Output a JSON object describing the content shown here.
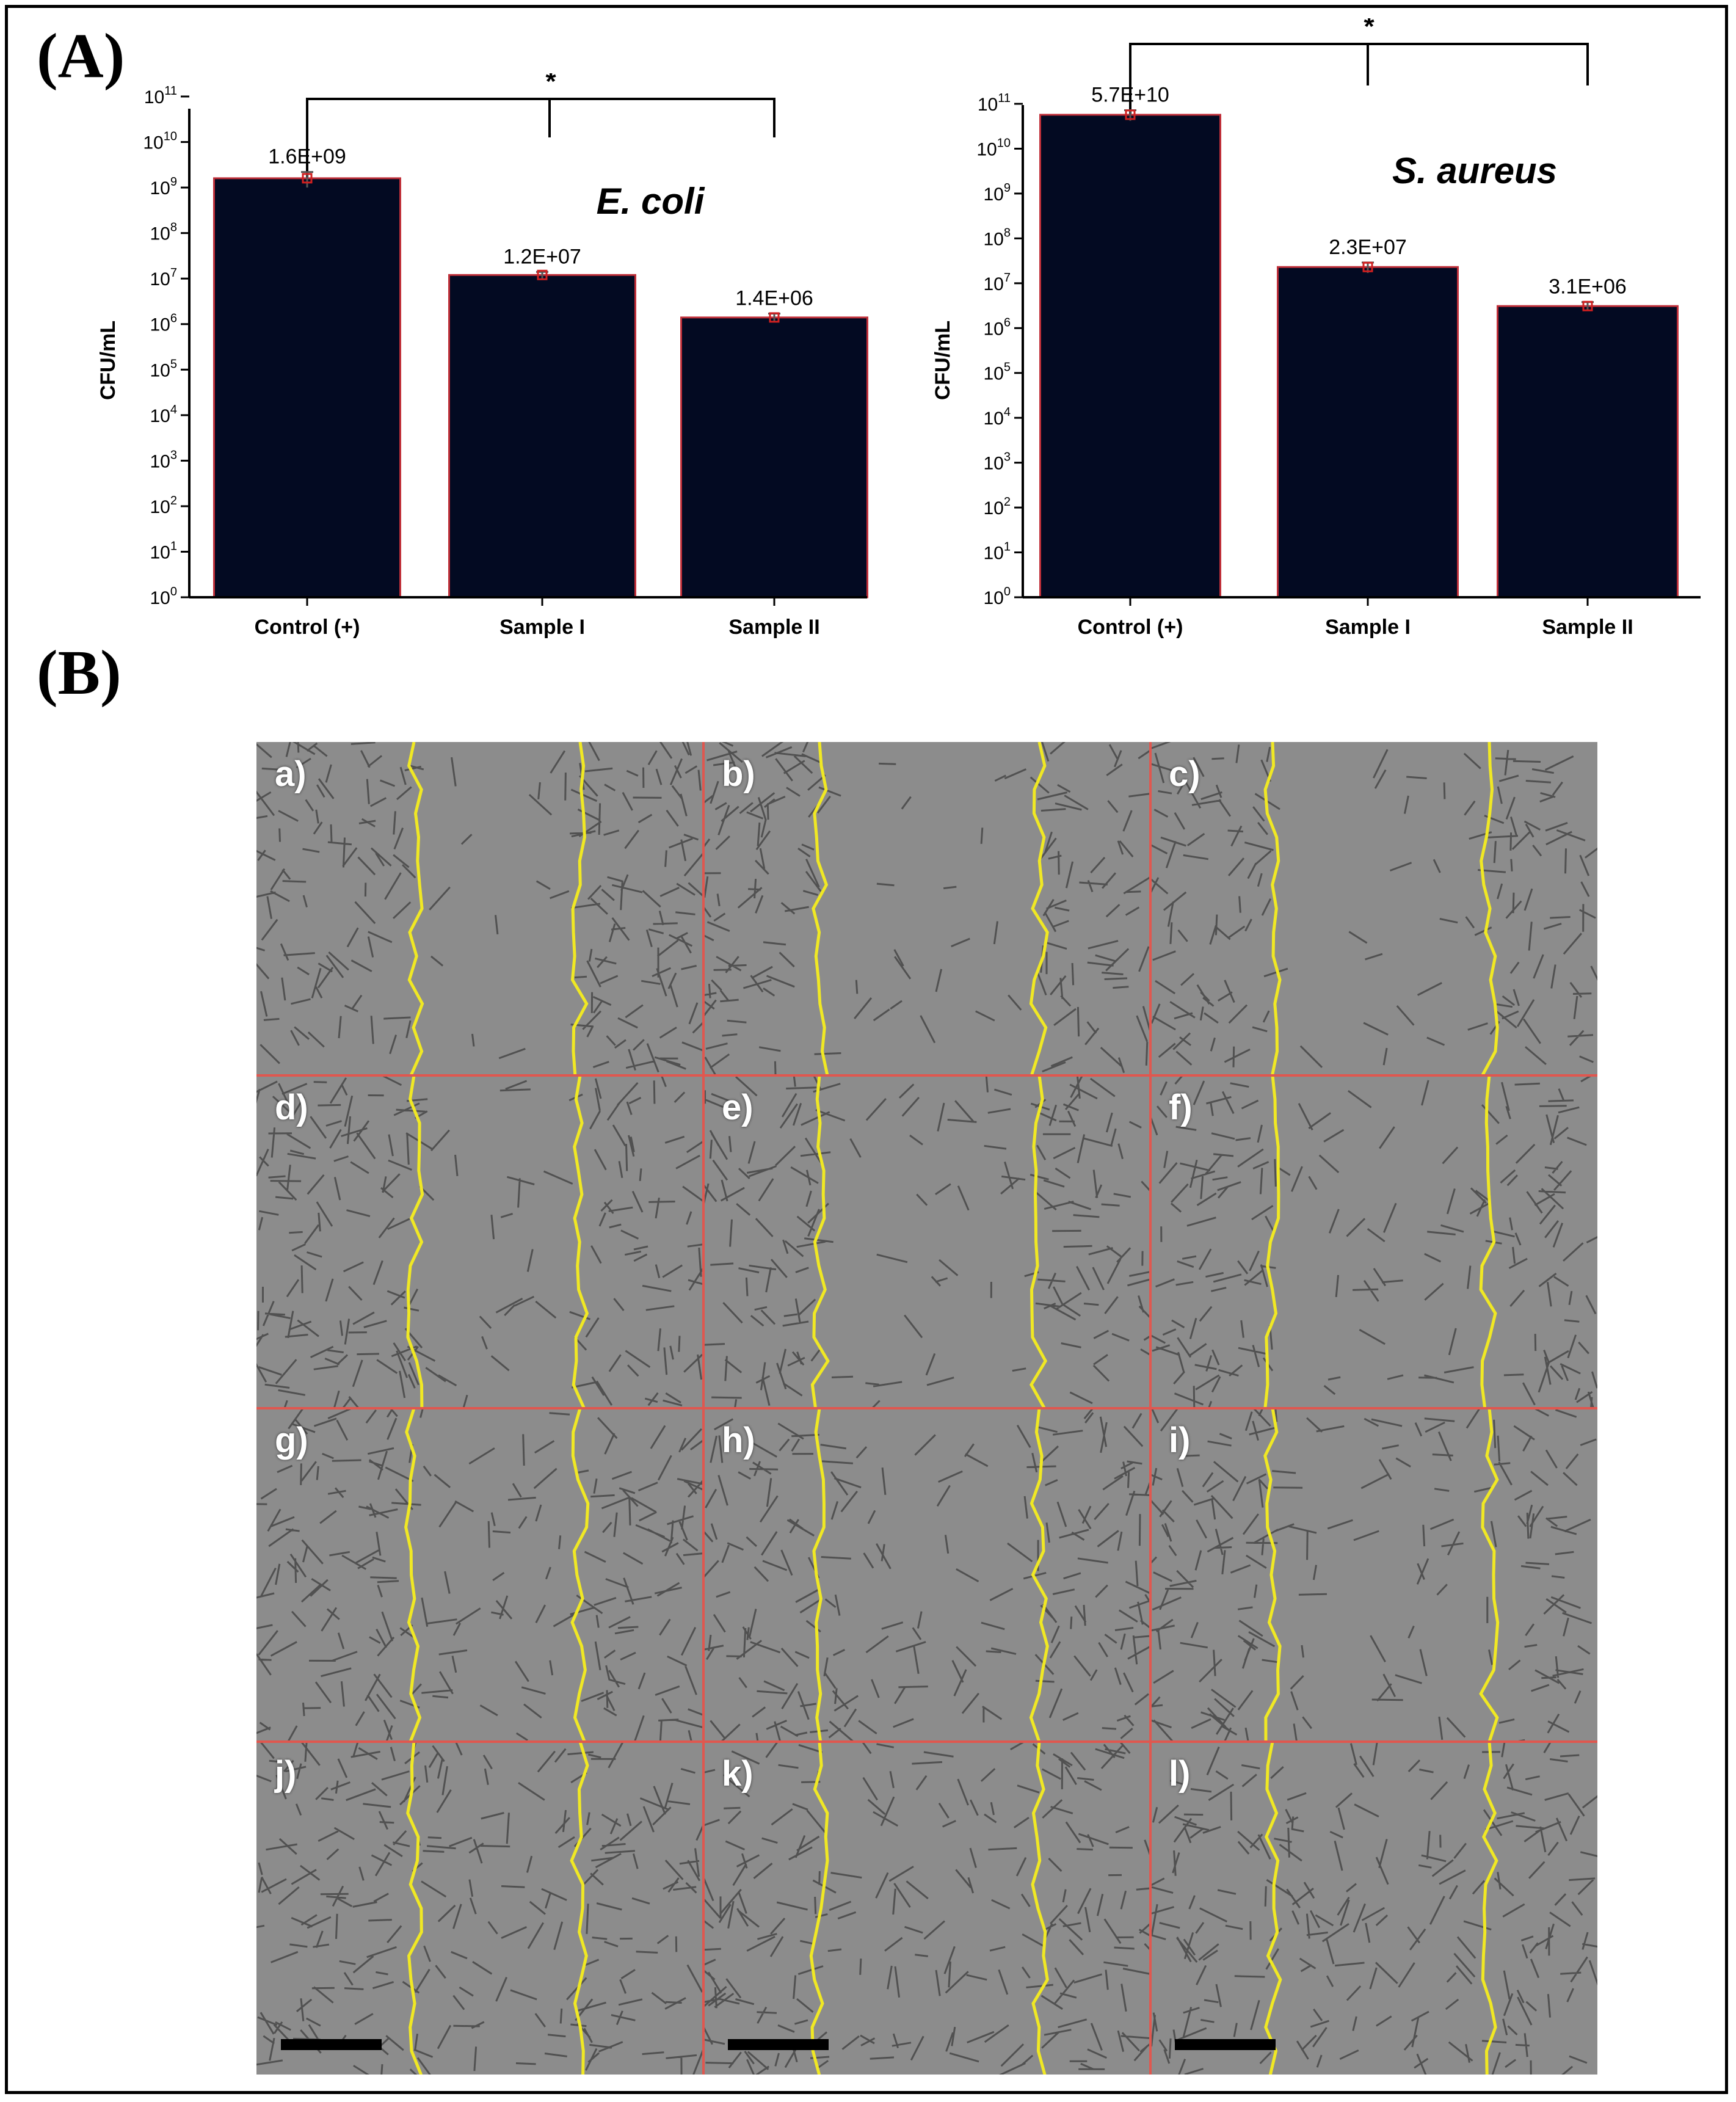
{
  "panel_a_label": "(A)",
  "panel_b_label": "(B)",
  "colors": {
    "bar_fill": "#030a22",
    "bar_edge": "#c0303a",
    "cell_bg": "#8c8c8c",
    "wound_edge": "#f0e824",
    "grid_line": "#e0574f"
  },
  "chart_data": [
    {
      "type": "bar",
      "title": "E. coli",
      "ylabel": "CFU/mL",
      "yscale": "log",
      "ylim": [
        1,
        100000000000
      ],
      "yticks": [
        {
          "value": 1,
          "base": "10",
          "exp": "0"
        },
        {
          "value": 10,
          "base": "10",
          "exp": "1"
        },
        {
          "value": 100,
          "base": "10",
          "exp": "2"
        },
        {
          "value": 1000,
          "base": "10",
          "exp": "3"
        },
        {
          "value": 10000,
          "base": "10",
          "exp": "4"
        },
        {
          "value": 100000,
          "base": "10",
          "exp": "5"
        },
        {
          "value": 1000000,
          "base": "10",
          "exp": "6"
        },
        {
          "value": 10000000,
          "base": "10",
          "exp": "7"
        },
        {
          "value": 100000000,
          "base": "10",
          "exp": "8"
        },
        {
          "value": 1000000000,
          "base": "10",
          "exp": "9"
        },
        {
          "value": 10000000000,
          "base": "10",
          "exp": "10"
        },
        {
          "value": 100000000000,
          "base": "10",
          "exp": "11"
        }
      ],
      "categories": [
        "Control (+)",
        "Sample I",
        "Sample II"
      ],
      "values": [
        1600000000,
        12000000,
        1400000
      ],
      "errors": [
        600000000,
        2000000,
        300000
      ],
      "data_labels": [
        "1.6E+09",
        "1.2E+07",
        "1.4E+06"
      ],
      "significance": "*"
    },
    {
      "type": "bar",
      "title": "S. aureus",
      "ylabel": "CFU/mL",
      "yscale": "log",
      "ylim": [
        1,
        100000000000
      ],
      "yticks": [
        {
          "value": 1,
          "base": "10",
          "exp": "0"
        },
        {
          "value": 10,
          "base": "10",
          "exp": "1"
        },
        {
          "value": 100,
          "base": "10",
          "exp": "2"
        },
        {
          "value": 1000,
          "base": "10",
          "exp": "3"
        },
        {
          "value": 10000,
          "base": "10",
          "exp": "4"
        },
        {
          "value": 100000,
          "base": "10",
          "exp": "5"
        },
        {
          "value": 1000000,
          "base": "10",
          "exp": "6"
        },
        {
          "value": 10000000,
          "base": "10",
          "exp": "7"
        },
        {
          "value": 100000000,
          "base": "10",
          "exp": "8"
        },
        {
          "value": 1000000000,
          "base": "10",
          "exp": "9"
        },
        {
          "value": 10000000000,
          "base": "10",
          "exp": "10"
        },
        {
          "value": 100000000000,
          "base": "10",
          "exp": "11"
        }
      ],
      "categories": [
        "Control (+)",
        "Sample I",
        "Sample II"
      ],
      "values": [
        57000000000,
        23000000,
        3100000
      ],
      "errors": [
        15000000000,
        6000000,
        700000
      ],
      "data_labels": [
        "5.7E+10",
        "2.3E+07",
        "3.1E+06"
      ],
      "significance": "*"
    }
  ],
  "micrographs": {
    "labels": [
      "a)",
      "b)",
      "c)",
      "d)",
      "e)",
      "f)",
      "g)",
      "h)",
      "i)",
      "j)",
      "k)",
      "l)"
    ],
    "rows": 4,
    "cols": 3
  }
}
